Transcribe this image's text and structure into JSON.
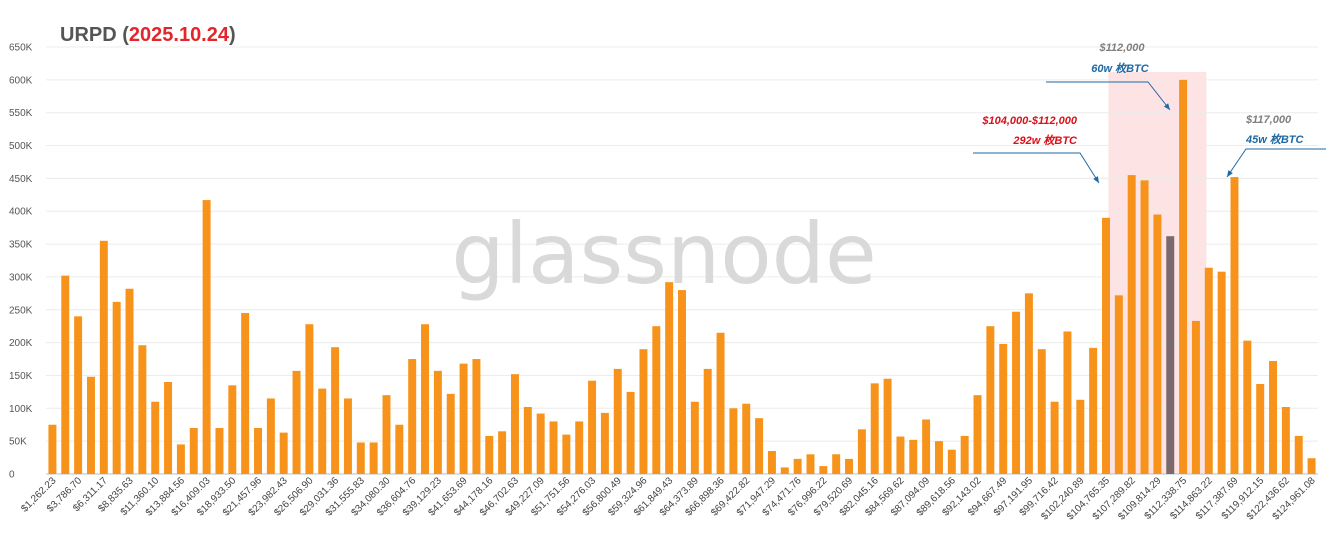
{
  "chart_data": {
    "type": "bar",
    "title_prefix": "URPD (",
    "title_date": "2025.10.24",
    "title_suffix": ")",
    "watermark": "glassnode",
    "ylim": [
      0,
      650000
    ],
    "yticks": [
      "0",
      "50K",
      "100K",
      "150K",
      "200K",
      "250K",
      "300K",
      "350K",
      "400K",
      "450K",
      "500K",
      "550K",
      "600K",
      "650K"
    ],
    "grid": true,
    "colors": {
      "bar": "#f7931a",
      "highlight_bar": "#7a6a6e",
      "title_dark": "#555555",
      "title_date": "#e3262b",
      "annotation_red": "#d9101a",
      "annotation_blue": "#1f6aa5",
      "annotation_grey": "#7f7f7f",
      "band": "#fde3e3"
    },
    "x_labels": [
      "$1,262.23",
      "$3,786.70",
      "$6,311.17",
      "$8,835.63",
      "$11,360.10",
      "$13,884.56",
      "$16,409.03",
      "$18,933.50",
      "$21,457.96",
      "$23,982.43",
      "$26,506.90",
      "$29,031.36",
      "$31,555.83",
      "$34,080.30",
      "$36,604.76",
      "$39,129.23",
      "$41,653.69",
      "$44,178.16",
      "$46,702.63",
      "$49,227.09",
      "$51,751.56",
      "$54,276.03",
      "$56,800.49",
      "$59,324.96",
      "$61,849.43",
      "$64,373.89",
      "$66,898.36",
      "$69,422.82",
      "$71,947.29",
      "$74,471.76",
      "$76,996.22",
      "$79,520.69",
      "$82,045.16",
      "$84,569.62",
      "$87,094.09",
      "$89,618.56",
      "$92,143.02",
      "$94,667.49",
      "$97,191.95",
      "$99,716.42",
      "$102,240.89",
      "$104,765.35",
      "$107,289.82",
      "$109,814.29",
      "$112,338.75",
      "$114,863.22",
      "$117,387.69",
      "$119,912.15",
      "$122,436.62",
      "$124,961.08"
    ],
    "values": [
      75000,
      302000,
      240000,
      148000,
      355000,
      262000,
      282000,
      196000,
      110000,
      140000,
      45000,
      70000,
      417000,
      70000,
      135000,
      245000,
      70000,
      115000,
      63000,
      157000,
      228000,
      130000,
      193000,
      115000,
      48000,
      48000,
      120000,
      75000,
      175000,
      228000,
      157000,
      122000,
      168000,
      175000,
      58000,
      65000,
      152000,
      102000,
      92000,
      80000,
      60000,
      80000,
      142000,
      93000,
      160000,
      125000,
      190000,
      225000,
      292000,
      280000,
      110000,
      160000,
      215000,
      100000,
      107000,
      85000,
      35000,
      10000,
      23000,
      30000,
      12000,
      30000,
      23000,
      68000,
      138000,
      145000,
      57000,
      52000,
      83000,
      50000,
      37000,
      58000,
      120000,
      225000,
      198000,
      247000,
      275000,
      190000,
      110000,
      217000,
      113000,
      192000,
      390000,
      272000,
      455000,
      447000,
      395000,
      362000,
      600000,
      233000,
      314000,
      308000,
      452000,
      203000,
      137000,
      172000,
      102000,
      58000,
      24000
    ],
    "highlight_index": 87,
    "band": {
      "from_index": 83,
      "to_index": 89
    },
    "annotations": [
      {
        "line1": "$104,000-$112,000",
        "line2": "292w 枚BTC"
      },
      {
        "line1": "$112,000",
        "line2": "60w 枚BTC"
      },
      {
        "line1": "$117,000",
        "line2": "45w 枚BTC"
      }
    ]
  }
}
